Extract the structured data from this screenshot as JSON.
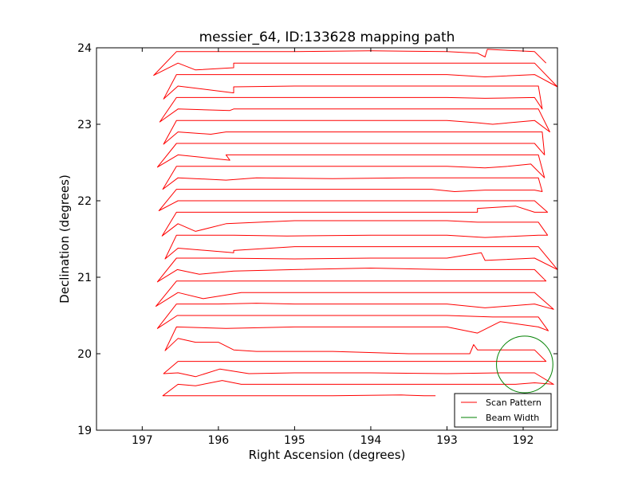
{
  "chart_data": {
    "type": "line",
    "title": "messier_64, ID:133628 mapping path",
    "xlabel": "Right Ascension (degrees)",
    "ylabel": "Declination (degrees)",
    "xlim": [
      197.6,
      191.55
    ],
    "ylim": [
      19,
      24
    ],
    "x_ticks": [
      "197",
      "196",
      "195",
      "194",
      "193",
      "192"
    ],
    "x_tick_values": [
      197,
      196,
      195,
      194,
      193,
      192
    ],
    "y_ticks": [
      "19",
      "20",
      "21",
      "22",
      "23",
      "24"
    ],
    "y_tick_values": [
      19,
      20,
      21,
      22,
      23,
      24
    ],
    "grid": false,
    "legend": {
      "placement": "lower-right",
      "entries": [
        {
          "label": "Scan Pattern",
          "color": "#ff0000"
        },
        {
          "label": "Beam Width",
          "color": "#008000"
        }
      ]
    },
    "series": [
      {
        "name": "Scan Pattern",
        "color": "#ff0000",
        "points": [
          [
            193.15,
            19.45
          ],
          [
            193.3,
            19.45
          ],
          [
            193.6,
            19.46
          ],
          [
            194.5,
            19.45
          ],
          [
            195.4,
            19.45
          ],
          [
            196.4,
            19.45
          ],
          [
            196.73,
            19.45
          ],
          [
            196.53,
            19.6
          ],
          [
            196.3,
            19.58
          ],
          [
            195.95,
            19.65
          ],
          [
            195.7,
            19.6
          ],
          [
            195.0,
            19.6
          ],
          [
            194.0,
            19.6
          ],
          [
            193.0,
            19.6
          ],
          [
            192.1,
            19.6
          ],
          [
            191.85,
            19.62
          ],
          [
            191.6,
            19.6
          ],
          [
            191.85,
            19.75
          ],
          [
            192.3,
            19.75
          ],
          [
            193.0,
            19.74
          ],
          [
            194.0,
            19.75
          ],
          [
            195.0,
            19.75
          ],
          [
            195.6,
            19.74
          ],
          [
            195.98,
            19.8
          ],
          [
            196.3,
            19.7
          ],
          [
            196.53,
            19.75
          ],
          [
            196.72,
            19.74
          ],
          [
            196.53,
            19.9
          ],
          [
            196.0,
            19.9
          ],
          [
            195.0,
            19.9
          ],
          [
            194.0,
            19.9
          ],
          [
            193.0,
            19.9
          ],
          [
            192.3,
            19.9
          ],
          [
            191.85,
            19.9
          ],
          [
            191.7,
            19.9
          ],
          [
            191.85,
            20.05
          ],
          [
            192.6,
            20.05
          ],
          [
            192.65,
            20.12
          ],
          [
            192.7,
            20.0
          ],
          [
            193.5,
            20.0
          ],
          [
            194.5,
            20.03
          ],
          [
            195.5,
            20.03
          ],
          [
            195.8,
            20.05
          ],
          [
            196.0,
            20.15
          ],
          [
            196.3,
            20.15
          ],
          [
            196.53,
            20.2
          ],
          [
            196.7,
            20.04
          ],
          [
            196.55,
            20.35
          ],
          [
            195.9,
            20.33
          ],
          [
            195.0,
            20.35
          ],
          [
            194.0,
            20.35
          ],
          [
            193.0,
            20.35
          ],
          [
            192.6,
            20.27
          ],
          [
            192.3,
            20.42
          ],
          [
            191.8,
            20.35
          ],
          [
            191.67,
            20.3
          ],
          [
            191.8,
            20.48
          ],
          [
            192.4,
            20.48
          ],
          [
            193.0,
            20.5
          ],
          [
            194.0,
            20.5
          ],
          [
            195.0,
            20.5
          ],
          [
            195.8,
            20.5
          ],
          [
            196.54,
            20.5
          ],
          [
            196.8,
            20.33
          ],
          [
            196.55,
            20.65
          ],
          [
            196.0,
            20.65
          ],
          [
            195.5,
            20.66
          ],
          [
            195.0,
            20.65
          ],
          [
            194.0,
            20.65
          ],
          [
            193.0,
            20.65
          ],
          [
            192.5,
            20.6
          ],
          [
            191.85,
            20.65
          ],
          [
            191.6,
            20.58
          ],
          [
            191.85,
            20.8
          ],
          [
            192.3,
            20.8
          ],
          [
            193.0,
            20.8
          ],
          [
            194.0,
            20.8
          ],
          [
            195.0,
            20.8
          ],
          [
            195.7,
            20.8
          ],
          [
            196.2,
            20.72
          ],
          [
            196.53,
            20.8
          ],
          [
            196.82,
            20.62
          ],
          [
            196.55,
            20.95
          ],
          [
            196.0,
            20.95
          ],
          [
            195.0,
            20.95
          ],
          [
            194.0,
            20.95
          ],
          [
            193.0,
            20.95
          ],
          [
            192.3,
            20.95
          ],
          [
            191.85,
            20.95
          ],
          [
            191.7,
            20.95
          ],
          [
            191.85,
            21.1
          ],
          [
            192.3,
            21.1
          ],
          [
            193.0,
            21.1
          ],
          [
            194.0,
            21.12
          ],
          [
            195.0,
            21.1
          ],
          [
            195.8,
            21.08
          ],
          [
            196.25,
            21.04
          ],
          [
            196.54,
            21.1
          ],
          [
            196.8,
            20.94
          ],
          [
            196.55,
            21.25
          ],
          [
            196.0,
            21.25
          ],
          [
            195.0,
            21.24
          ],
          [
            194.0,
            21.25
          ],
          [
            193.0,
            21.25
          ],
          [
            192.55,
            21.32
          ],
          [
            192.5,
            21.22
          ],
          [
            191.85,
            21.25
          ],
          [
            191.55,
            21.1
          ],
          [
            191.8,
            21.4
          ],
          [
            192.4,
            21.4
          ],
          [
            193.0,
            21.4
          ],
          [
            194.0,
            21.4
          ],
          [
            195.0,
            21.4
          ],
          [
            195.8,
            21.35
          ],
          [
            195.8,
            21.32
          ],
          [
            196.53,
            21.38
          ],
          [
            196.7,
            21.24
          ],
          [
            196.55,
            21.55
          ],
          [
            195.8,
            21.55
          ],
          [
            195.1,
            21.54
          ],
          [
            194.0,
            21.55
          ],
          [
            193.0,
            21.55
          ],
          [
            192.5,
            21.52
          ],
          [
            191.8,
            21.55
          ],
          [
            191.68,
            21.55
          ],
          [
            191.8,
            21.72
          ],
          [
            192.6,
            21.72
          ],
          [
            193.0,
            21.74
          ],
          [
            194.0,
            21.74
          ],
          [
            195.0,
            21.74
          ],
          [
            195.9,
            21.7
          ],
          [
            196.3,
            21.6
          ],
          [
            196.53,
            21.7
          ],
          [
            196.74,
            21.54
          ],
          [
            196.55,
            21.85
          ],
          [
            196.0,
            21.85
          ],
          [
            195.0,
            21.85
          ],
          [
            194.0,
            21.85
          ],
          [
            193.0,
            21.85
          ],
          [
            192.6,
            21.85
          ],
          [
            192.6,
            21.9
          ],
          [
            192.1,
            21.93
          ],
          [
            191.85,
            21.85
          ],
          [
            191.68,
            21.85
          ],
          [
            191.85,
            22.0
          ],
          [
            192.5,
            22.0
          ],
          [
            193.0,
            22.0
          ],
          [
            194.0,
            22.0
          ],
          [
            195.0,
            22.0
          ],
          [
            195.9,
            22.0
          ],
          [
            196.53,
            22.0
          ],
          [
            196.78,
            21.87
          ],
          [
            196.55,
            22.15
          ],
          [
            196.0,
            22.15
          ],
          [
            195.0,
            22.15
          ],
          [
            194.0,
            22.15
          ],
          [
            193.2,
            22.15
          ],
          [
            192.9,
            22.12
          ],
          [
            192.5,
            22.14
          ],
          [
            191.85,
            22.14
          ],
          [
            191.75,
            22.12
          ],
          [
            191.8,
            22.3
          ],
          [
            192.5,
            22.3
          ],
          [
            193.0,
            22.3
          ],
          [
            193.5,
            22.3
          ],
          [
            194.5,
            22.29
          ],
          [
            195.5,
            22.3
          ],
          [
            195.9,
            22.27
          ],
          [
            196.53,
            22.3
          ],
          [
            196.73,
            22.15
          ],
          [
            196.55,
            22.45
          ],
          [
            195.9,
            22.45
          ],
          [
            195.0,
            22.45
          ],
          [
            194.0,
            22.45
          ],
          [
            193.0,
            22.45
          ],
          [
            192.5,
            22.43
          ],
          [
            192.2,
            22.45
          ],
          [
            191.9,
            22.48
          ],
          [
            191.72,
            22.3
          ],
          [
            191.8,
            22.6
          ],
          [
            192.5,
            22.6
          ],
          [
            193.0,
            22.6
          ],
          [
            194.0,
            22.6
          ],
          [
            195.0,
            22.6
          ],
          [
            195.9,
            22.6
          ],
          [
            195.85,
            22.53
          ],
          [
            196.53,
            22.6
          ],
          [
            196.8,
            22.44
          ],
          [
            196.55,
            22.75
          ],
          [
            196.0,
            22.75
          ],
          [
            195.0,
            22.75
          ],
          [
            194.0,
            22.75
          ],
          [
            193.0,
            22.75
          ],
          [
            192.5,
            22.75
          ],
          [
            191.85,
            22.75
          ],
          [
            191.72,
            22.6
          ],
          [
            191.75,
            22.9
          ],
          [
            192.5,
            22.9
          ],
          [
            193.0,
            22.9
          ],
          [
            194.0,
            22.9
          ],
          [
            195.0,
            22.9
          ],
          [
            195.9,
            22.9
          ],
          [
            196.1,
            22.87
          ],
          [
            196.53,
            22.9
          ],
          [
            196.72,
            22.74
          ],
          [
            196.55,
            23.05
          ],
          [
            196.0,
            23.05
          ],
          [
            195.0,
            23.05
          ],
          [
            194.0,
            23.05
          ],
          [
            193.0,
            23.05
          ],
          [
            192.6,
            23.02
          ],
          [
            192.4,
            23.0
          ],
          [
            191.85,
            23.05
          ],
          [
            191.65,
            22.9
          ],
          [
            191.8,
            23.2
          ],
          [
            192.5,
            23.2
          ],
          [
            193.0,
            23.2
          ],
          [
            194.0,
            23.2
          ],
          [
            195.0,
            23.2
          ],
          [
            195.8,
            23.2
          ],
          [
            195.85,
            23.18
          ],
          [
            196.53,
            23.2
          ],
          [
            196.77,
            23.03
          ],
          [
            196.55,
            23.35
          ],
          [
            196.0,
            23.35
          ],
          [
            195.0,
            23.35
          ],
          [
            194.0,
            23.35
          ],
          [
            193.0,
            23.35
          ],
          [
            192.5,
            23.34
          ],
          [
            191.85,
            23.35
          ],
          [
            191.75,
            23.2
          ],
          [
            191.8,
            23.5
          ],
          [
            192.5,
            23.5
          ],
          [
            193.0,
            23.5
          ],
          [
            194.0,
            23.5
          ],
          [
            195.0,
            23.5
          ],
          [
            195.8,
            23.49
          ],
          [
            195.8,
            23.41
          ],
          [
            196.53,
            23.5
          ],
          [
            196.72,
            23.33
          ],
          [
            196.55,
            23.65
          ],
          [
            196.0,
            23.65
          ],
          [
            195.0,
            23.65
          ],
          [
            194.0,
            23.65
          ],
          [
            193.0,
            23.65
          ],
          [
            192.5,
            23.62
          ],
          [
            191.85,
            23.65
          ],
          [
            191.55,
            23.49
          ],
          [
            191.85,
            23.8
          ],
          [
            192.5,
            23.8
          ],
          [
            193.0,
            23.8
          ],
          [
            194.0,
            23.8
          ],
          [
            195.0,
            23.8
          ],
          [
            195.8,
            23.8
          ],
          [
            195.8,
            23.74
          ],
          [
            196.3,
            23.71
          ],
          [
            196.53,
            23.8
          ],
          [
            196.85,
            23.64
          ],
          [
            196.55,
            23.95
          ],
          [
            196.0,
            23.95
          ],
          [
            195.0,
            23.95
          ],
          [
            194.0,
            23.96
          ],
          [
            193.0,
            23.95
          ],
          [
            192.6,
            23.93
          ],
          [
            192.5,
            23.88
          ],
          [
            192.47,
            23.98
          ],
          [
            191.85,
            23.95
          ],
          [
            191.7,
            23.8
          ]
        ]
      },
      {
        "name": "Beam Width",
        "color": "#008000",
        "shape": "circle",
        "center": [
          191.98,
          19.86
        ],
        "radius_deg": 0.37
      }
    ]
  }
}
